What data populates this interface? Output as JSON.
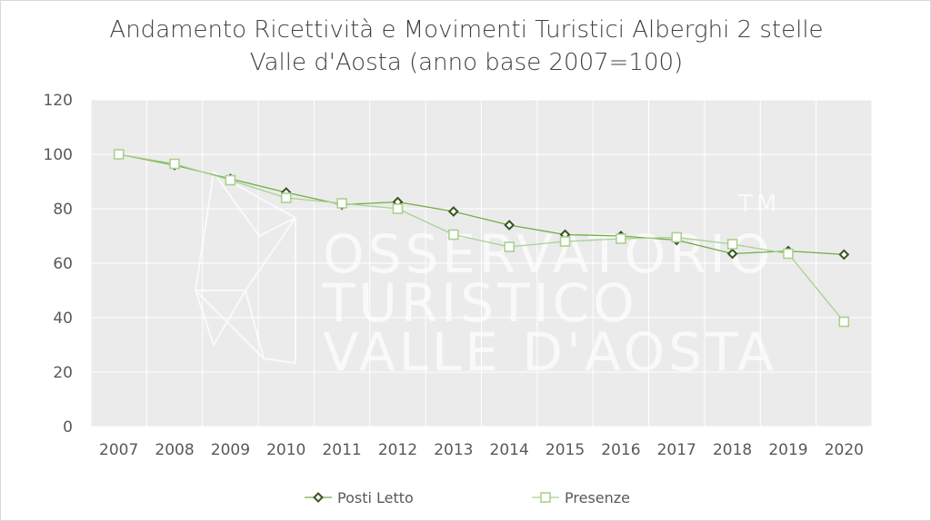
{
  "chart_data": {
    "type": "line",
    "title": "Andamento Ricettività e Movimenti Turistici Alberghi 2 stelle",
    "subtitle": "Valle d'Aosta (anno base 2007=100)",
    "xlabel": "",
    "ylabel": "",
    "categories": [
      "2007",
      "2008",
      "2009",
      "2010",
      "2011",
      "2012",
      "2013",
      "2014",
      "2015",
      "2016",
      "2017",
      "2018",
      "2019",
      "2020"
    ],
    "ylim": [
      0,
      120
    ],
    "yticks": [
      0,
      20,
      40,
      60,
      80,
      100,
      120
    ],
    "grid": true,
    "legend_position": "bottom",
    "series": [
      {
        "name": "Posti Letto",
        "marker": "diamond",
        "color": "#375623",
        "values": [
          100,
          96,
          91,
          86,
          81.5,
          82.5,
          79,
          74,
          70.5,
          70,
          68.5,
          63.5,
          64.5,
          63.2
        ]
      },
      {
        "name": "Presenze",
        "marker": "square",
        "color": "#a9d18e",
        "values": [
          100,
          96.5,
          90.5,
          84,
          82,
          80,
          70.5,
          66,
          68,
          69,
          69.5,
          67,
          63.5,
          38.5
        ]
      }
    ]
  },
  "watermark": {
    "lines": [
      "OSSERVATORIO",
      "TURISTICO",
      "VALLE D'AOSTA"
    ],
    "trademark": "TM"
  },
  "colors": {
    "plot_background": "#ebebeb",
    "gridline": "#ffffff",
    "text": "#595959"
  }
}
